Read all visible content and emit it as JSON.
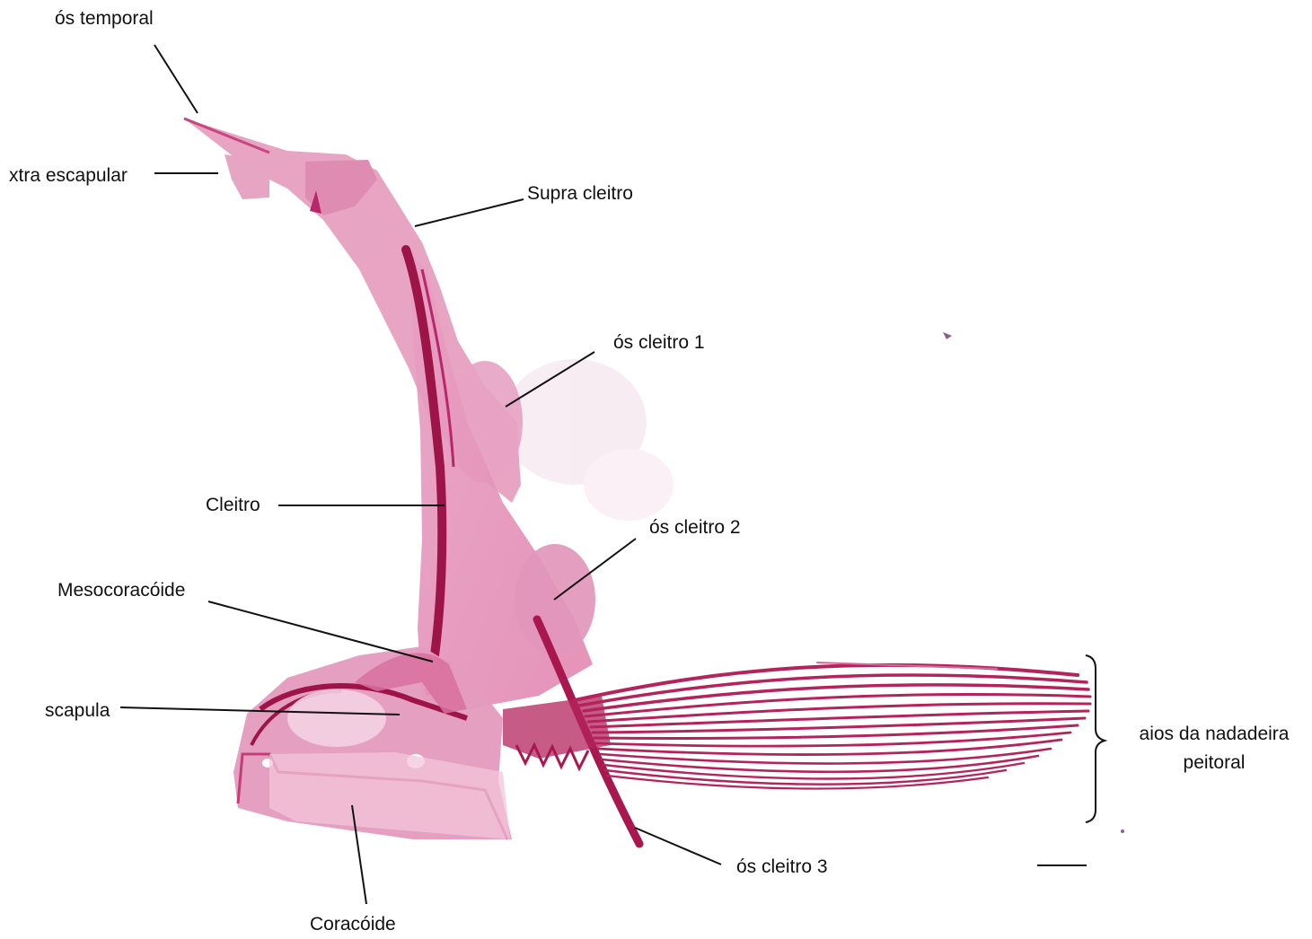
{
  "labels": {
    "os_temporal": "ós temporal",
    "extra_escapular": "xtra escapular",
    "supra_cleitro": "Supra cleitro",
    "os_cleitro_1": "ós cleitro 1",
    "cleitro": "Cleitro",
    "os_cleitro_2": "ós cleitro 2",
    "mesocoracoide": "Mesocoracóide",
    "scapula": "scapula",
    "coracoide": "Coracóide",
    "os_cleitro_3": "ós cleitro 3",
    "raios_line1": "aios da nadadeira",
    "raios_line2": "peitoral"
  },
  "colors": {
    "background": "#ffffff",
    "tissue_light": "#e9a2c4",
    "tissue_mid": "#d9709f",
    "bone_dark": "#a8184f",
    "ray_color": "#b3245c",
    "leader_line": "#111111"
  }
}
